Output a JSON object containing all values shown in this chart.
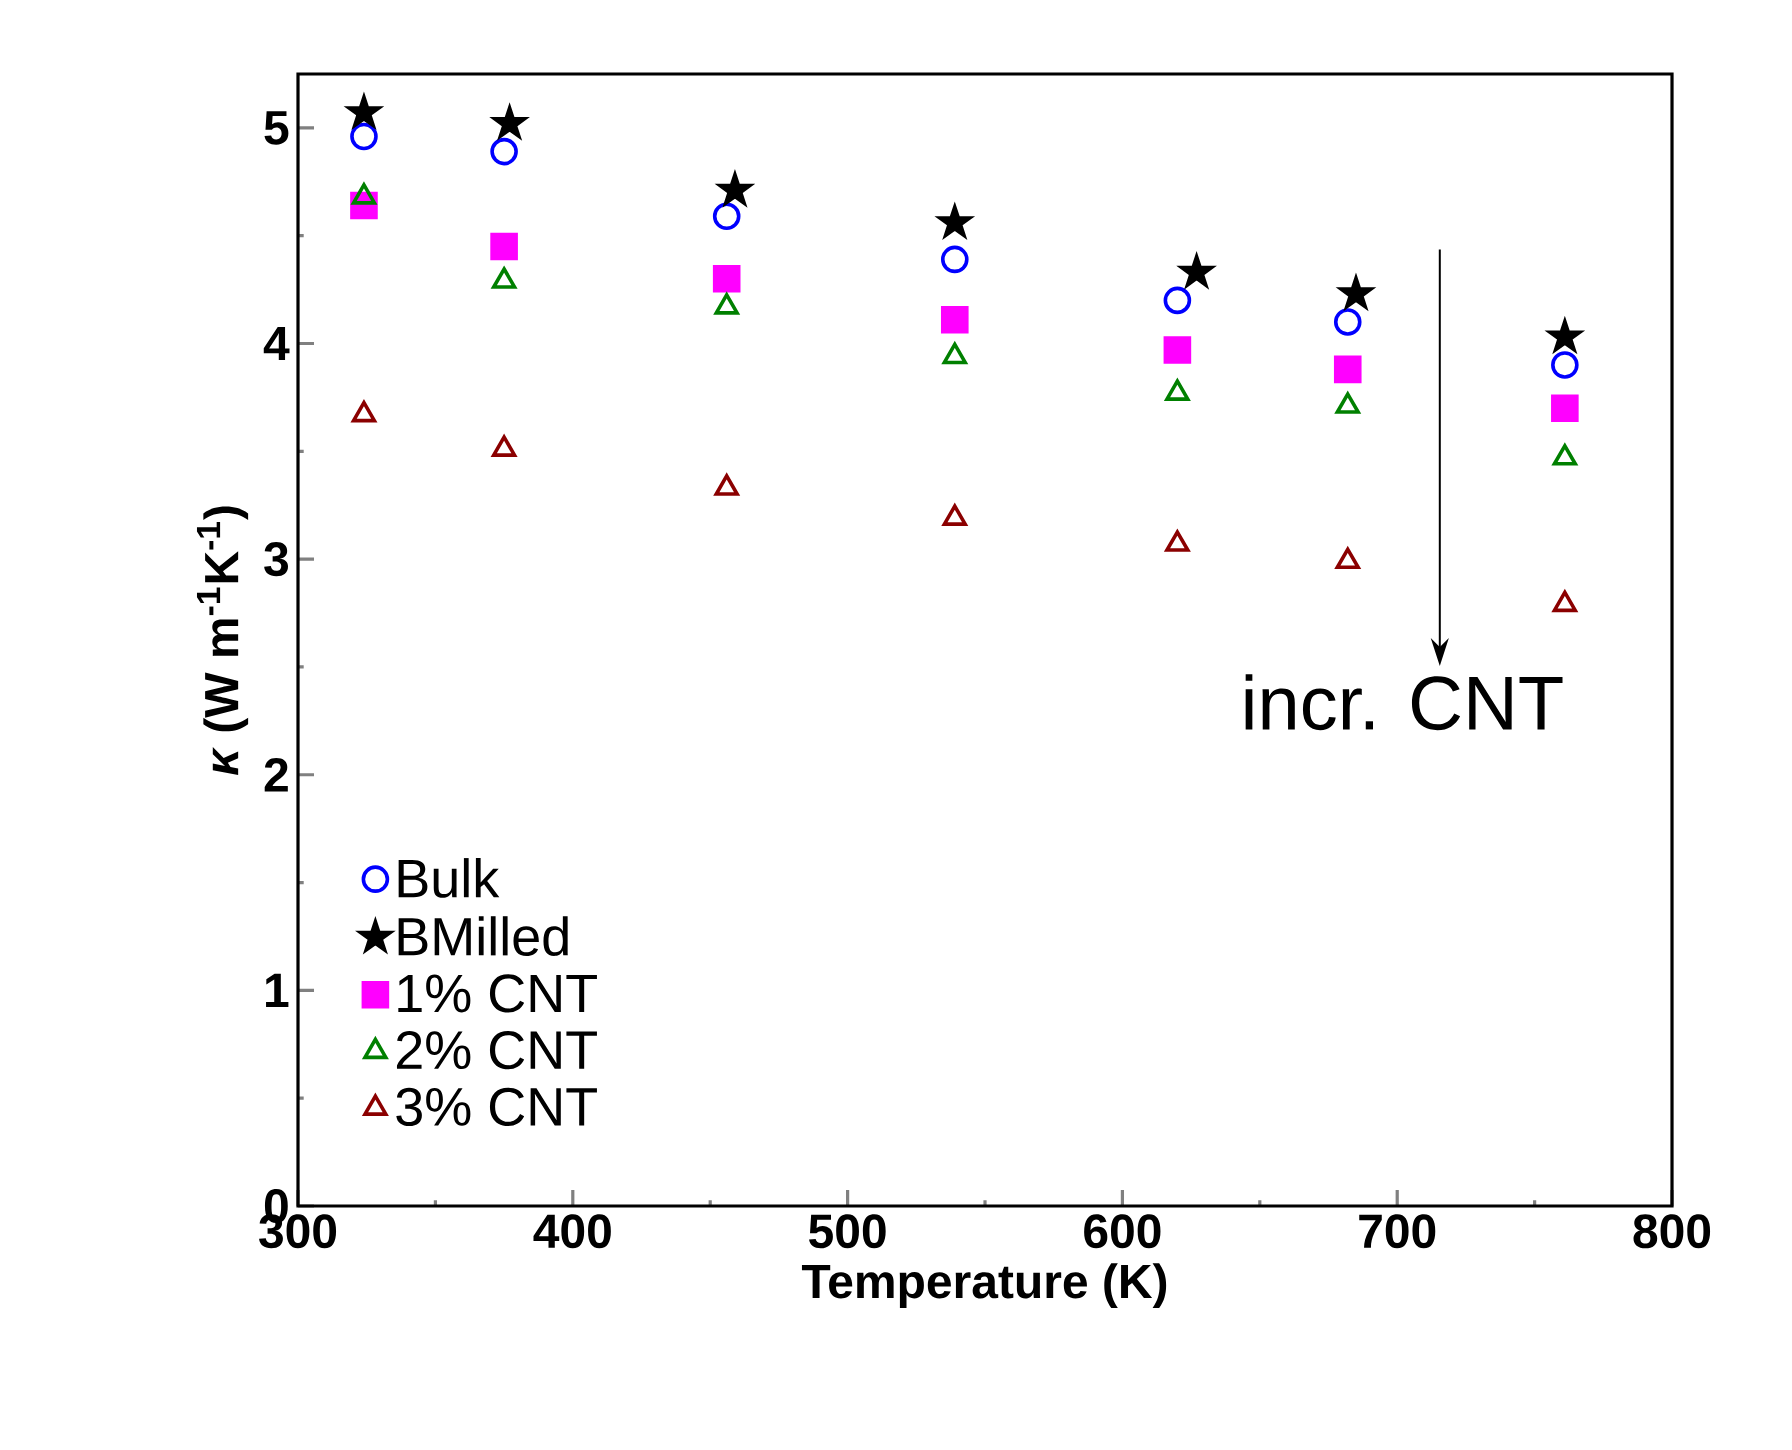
{
  "chart_data": {
    "type": "scatter",
    "xlabel": "Temperature (K)",
    "ylabel": "*κ* (W m$^{-1}$K$^{-1}$)",
    "xlim": [
      300,
      800
    ],
    "ylim": [
      0,
      5.25
    ],
    "xticks": [
      300,
      400,
      500,
      600,
      700,
      800
    ],
    "yticks": [
      0,
      1,
      2,
      3,
      4,
      5
    ],
    "legend": "bottom left",
    "grid": false,
    "annotations": [
      "incr. CNT"
    ],
    "series": [
      {
        "name": "Bulk",
        "color": "#0000ff",
        "marker": "circle",
        "x": [
          324,
          375,
          456,
          539,
          620,
          682,
          761
        ],
        "values": [
          4.96,
          4.89,
          4.59,
          4.39,
          4.2,
          4.1,
          3.9
        ]
      },
      {
        "name": "BMilled",
        "color": "#000000",
        "marker": "star",
        "x": [
          324,
          377,
          459,
          539,
          627,
          685,
          761
        ],
        "values": [
          5.07,
          5.02,
          4.71,
          4.56,
          4.33,
          4.23,
          4.03
        ]
      },
      {
        "name": "1% CNT",
        "color": "#ff00ff",
        "marker": "square",
        "x": [
          324,
          375,
          456,
          539,
          620,
          682,
          761
        ],
        "values": [
          4.64,
          4.45,
          4.3,
          4.11,
          3.97,
          3.88,
          3.7
        ]
      },
      {
        "name": "2% CNT",
        "color": "#008000",
        "marker": "triangle",
        "x": [
          324,
          375,
          456,
          539,
          620,
          682,
          761
        ],
        "values": [
          4.68,
          4.29,
          4.17,
          3.94,
          3.77,
          3.71,
          3.47
        ]
      },
      {
        "name": "3% CNT",
        "color": "#8b0000",
        "marker": "triangle",
        "x": [
          324,
          375,
          456,
          539,
          620,
          682,
          761
        ],
        "values": [
          3.67,
          3.51,
          3.33,
          3.19,
          3.07,
          2.99,
          2.79
        ]
      }
    ]
  }
}
